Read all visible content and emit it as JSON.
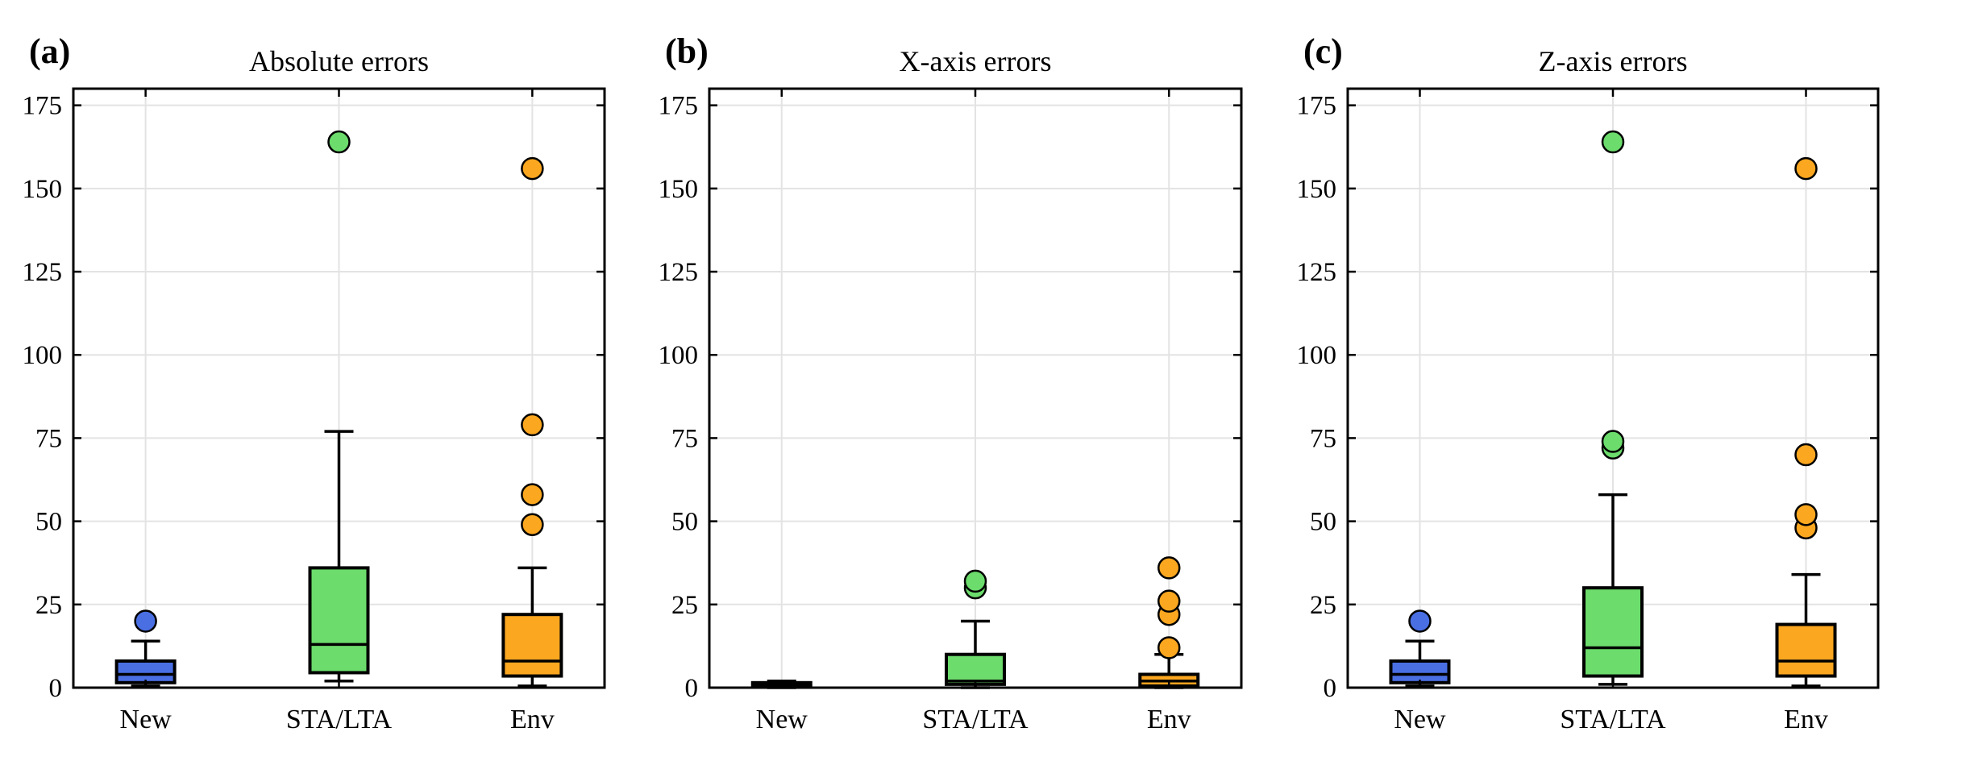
{
  "colors": {
    "New": "#4a6fe3",
    "STA/LTA": "#6cdc6c",
    "Env": "#fca720"
  },
  "chart_data": [
    {
      "type": "box",
      "panel_label": "(a)",
      "title": "Absolute errors",
      "categories": [
        "New",
        "STA/LTA",
        "Env"
      ],
      "ylim": [
        0,
        180
      ],
      "yticks": [
        0,
        25,
        50,
        75,
        100,
        125,
        150,
        175
      ],
      "grid": true,
      "boxes": [
        {
          "category": "New",
          "whislo": 0.5,
          "q1": 1.5,
          "median": 4,
          "q3": 8,
          "whishi": 14,
          "fliers": [
            20
          ]
        },
        {
          "category": "STA/LTA",
          "whislo": 2,
          "q1": 4.5,
          "median": 13,
          "q3": 36,
          "whishi": 77,
          "fliers": [
            164
          ]
        },
        {
          "category": "Env",
          "whislo": 0.5,
          "q1": 3.5,
          "median": 8,
          "q3": 22,
          "whishi": 36,
          "fliers": [
            49,
            58,
            79,
            156
          ]
        }
      ]
    },
    {
      "type": "box",
      "panel_label": "(b)",
      "title": "X-axis errors",
      "categories": [
        "New",
        "STA/LTA",
        "Env"
      ],
      "ylim": [
        0,
        180
      ],
      "yticks": [
        0,
        25,
        50,
        75,
        100,
        125,
        150,
        175
      ],
      "grid": true,
      "boxes": [
        {
          "category": "New",
          "whislo": 0,
          "q1": 0.2,
          "median": 0.8,
          "q3": 1.5,
          "whishi": 2,
          "fliers": []
        },
        {
          "category": "STA/LTA",
          "whislo": 0,
          "q1": 1,
          "median": 2,
          "q3": 10,
          "whishi": 20,
          "fliers": [
            30,
            32
          ]
        },
        {
          "category": "Env",
          "whislo": 0,
          "q1": 0.5,
          "median": 2,
          "q3": 4,
          "whishi": 10,
          "fliers": [
            12,
            22,
            26,
            36
          ]
        }
      ]
    },
    {
      "type": "box",
      "panel_label": "(c)",
      "title": "Z-axis errors",
      "categories": [
        "New",
        "STA/LTA",
        "Env"
      ],
      "ylim": [
        0,
        180
      ],
      "yticks": [
        0,
        25,
        50,
        75,
        100,
        125,
        150,
        175
      ],
      "grid": true,
      "boxes": [
        {
          "category": "New",
          "whislo": 0.5,
          "q1": 1.5,
          "median": 4,
          "q3": 8,
          "whishi": 14,
          "fliers": [
            20
          ]
        },
        {
          "category": "STA/LTA",
          "whislo": 1,
          "q1": 3.5,
          "median": 12,
          "q3": 30,
          "whishi": 58,
          "fliers": [
            72,
            74,
            164
          ]
        },
        {
          "category": "Env",
          "whislo": 0.5,
          "q1": 3.5,
          "median": 8,
          "q3": 19,
          "whishi": 34,
          "fliers": [
            48,
            52,
            70,
            156
          ]
        }
      ]
    }
  ]
}
